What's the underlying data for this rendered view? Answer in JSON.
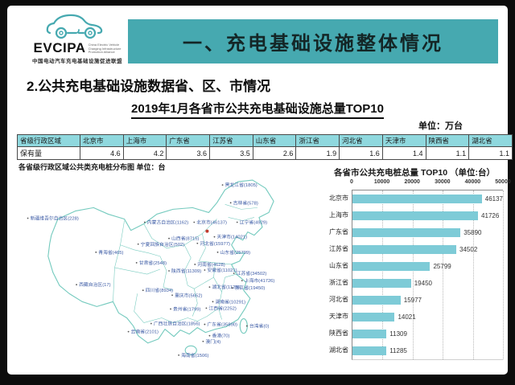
{
  "logo": {
    "brand": "EVCIPA",
    "tagline_lines": [
      "China Electric Vehicle",
      "Charging Infrastructure",
      "Promotion Alliance"
    ],
    "subtext": "中国电动汽车充电基础设施促进联盟",
    "accent_color": "#46a9b0"
  },
  "banner": {
    "title": "一、充电基础设施整体情况",
    "background_color": "#46a9b0"
  },
  "section": {
    "subtitle": "2.公共充电基础设施数据省、区、市情况"
  },
  "colors": {
    "table_header": "#8fd8de",
    "bar": "#7ecbd7",
    "map_outline": "#74cabe",
    "map_label": "#3b5aa5",
    "capital_dot": "#c23b2e"
  },
  "chart_data": [
    {
      "type": "bar",
      "orientation": "horizontal",
      "title": "各省市公共充电桩总量 TOP10 （单位:台）",
      "categories": [
        "北京市",
        "上海市",
        "广东省",
        "江苏省",
        "山东省",
        "浙江省",
        "河北省",
        "天津市",
        "陕西省",
        "湖北省"
      ],
      "values": [
        46137,
        41726,
        35890,
        34502,
        25799,
        19450,
        15977,
        14021,
        11309,
        11285
      ],
      "xlim": [
        0,
        50000
      ],
      "xticks": [
        0,
        10000,
        20000,
        30000,
        40000,
        50000
      ],
      "axis_position": "top",
      "grid": "dotted-vertical",
      "legend": "none"
    },
    {
      "type": "table",
      "title": "2019年1月各省市公共充电基础设施总量TOP10",
      "unit": "单位：万台",
      "columns": [
        "省级行政区域",
        "北京市",
        "上海市",
        "广东省",
        "江苏省",
        "山东省",
        "浙江省",
        "河北省",
        "天津市",
        "陕西省",
        "湖北省"
      ],
      "rows": [
        [
          "保有量",
          "4.6",
          "4.2",
          "3.6",
          "3.5",
          "2.6",
          "1.9",
          "1.6",
          "1.4",
          "1.1",
          "1.1"
        ]
      ]
    },
    {
      "type": "scatter",
      "subtype": "china-map-province-labels",
      "title": "各省级行政区域公共类充电桩分布图  单位：台",
      "capital_dot": {
        "x": 240,
        "y": 73
      },
      "labels": [
        {
          "name": "黑龙江省",
          "value": 1805,
          "x": 262,
          "y": 18
        },
        {
          "name": "吉林省",
          "value": 578,
          "x": 272,
          "y": 40
        },
        {
          "name": "辽宁省",
          "value": 4929,
          "x": 280,
          "y": 64
        },
        {
          "name": "内蒙古自治区",
          "value": 1162,
          "x": 166,
          "y": 64
        },
        {
          "name": "北京市",
          "value": 46137,
          "x": 227,
          "y": 64
        },
        {
          "name": "天津市",
          "value": 14021,
          "x": 252,
          "y": 82
        },
        {
          "name": "河北省",
          "value": 15977,
          "x": 231,
          "y": 90
        },
        {
          "name": "山西省",
          "value": 8715,
          "x": 196,
          "y": 84
        },
        {
          "name": "山东省",
          "value": 25799,
          "x": 256,
          "y": 101
        },
        {
          "name": "新疆维吾尔自治区",
          "value": 228,
          "x": 22,
          "y": 59
        },
        {
          "name": "青海省",
          "value": 465,
          "x": 106,
          "y": 101
        },
        {
          "name": "宁夏回族自治区",
          "value": 502,
          "x": 158,
          "y": 91
        },
        {
          "name": "甘肃省",
          "value": 2548,
          "x": 156,
          "y": 114
        },
        {
          "name": "陕西省",
          "value": 11309,
          "x": 196,
          "y": 124
        },
        {
          "name": "河南省",
          "value": 4628,
          "x": 228,
          "y": 116
        },
        {
          "name": "江苏省",
          "value": 34502,
          "x": 276,
          "y": 127
        },
        {
          "name": "上海市",
          "value": 41726,
          "x": 286,
          "y": 136
        },
        {
          "name": "安徽省",
          "value": 11021,
          "x": 240,
          "y": 123
        },
        {
          "name": "湖北省",
          "value": 11285,
          "x": 246,
          "y": 144
        },
        {
          "name": "浙江省",
          "value": 19450,
          "x": 274,
          "y": 145
        },
        {
          "name": "西藏自治区",
          "value": 17,
          "x": 82,
          "y": 141
        },
        {
          "name": "四川省",
          "value": 8934,
          "x": 164,
          "y": 148
        },
        {
          "name": "重庆市",
          "value": 5652,
          "x": 200,
          "y": 154
        },
        {
          "name": "湖南省",
          "value": 10291,
          "x": 250,
          "y": 162
        },
        {
          "name": "江西省",
          "value": 2252,
          "x": 242,
          "y": 170
        },
        {
          "name": "贵州省",
          "value": 1799,
          "x": 198,
          "y": 171
        },
        {
          "name": "云南省",
          "value": 2101,
          "x": 146,
          "y": 199
        },
        {
          "name": "广西壮族自治区",
          "value": 1856,
          "x": 174,
          "y": 189
        },
        {
          "name": "广东省",
          "value": 35890,
          "x": 240,
          "y": 190
        },
        {
          "name": "台湾省",
          "value": 0,
          "x": 292,
          "y": 192
        },
        {
          "name": "香港",
          "value": 70,
          "x": 246,
          "y": 204
        },
        {
          "name": "澳门",
          "value": 4,
          "x": 238,
          "y": 211
        },
        {
          "name": "海南省",
          "value": 1506,
          "x": 208,
          "y": 228
        }
      ]
    }
  ]
}
